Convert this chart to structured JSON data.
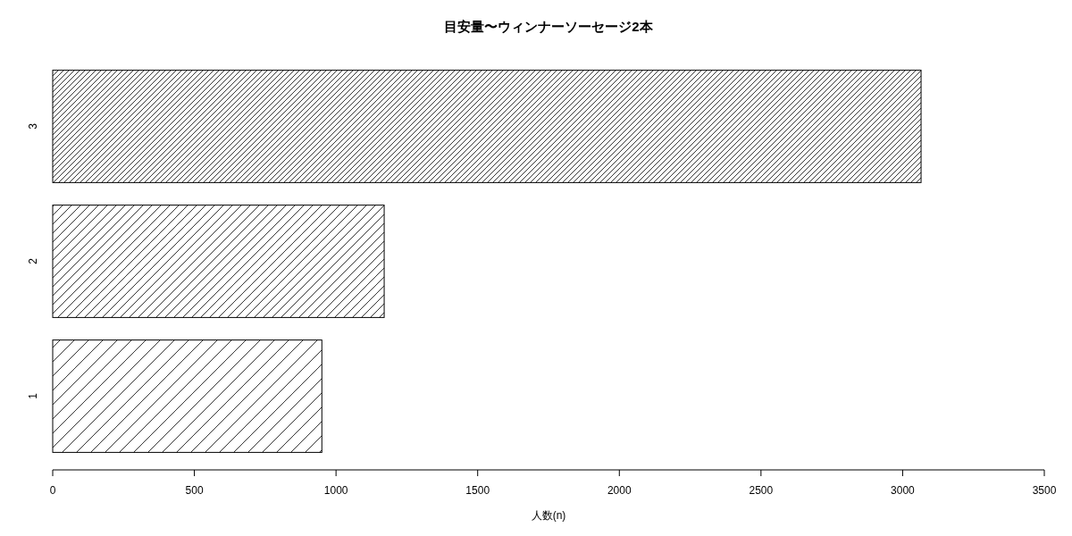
{
  "chart_data": {
    "type": "bar",
    "orientation": "horizontal",
    "title": "目安量〜ウィンナーソーセージ2本",
    "xlabel": "人数(n)",
    "categories": [
      "3",
      "2",
      "1"
    ],
    "values": [
      3065,
      1170,
      950
    ],
    "color": "#000000",
    "xlim": [
      0,
      3500
    ],
    "xticks": [
      0,
      500,
      1000,
      1500,
      2000,
      2500,
      3000,
      3500
    ],
    "grid": false
  }
}
